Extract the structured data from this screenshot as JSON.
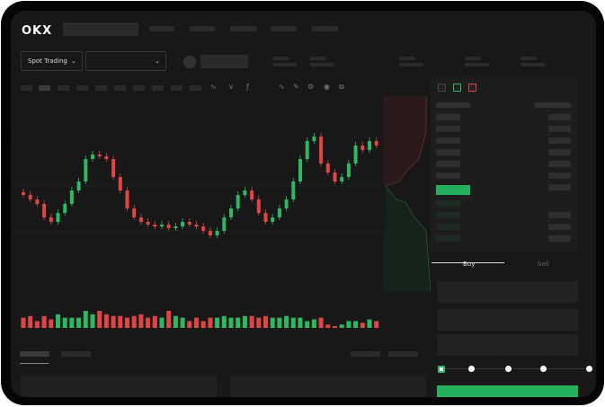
{
  "header": {
    "logo": "OKX"
  },
  "market": {
    "mode_label": "Spot Trading",
    "pair_value": ""
  },
  "orderbook": {
    "view_icons": [
      "orderbook-both-icon",
      "orderbook-buy-icon",
      "orderbook-sell-icon"
    ],
    "highlighted_color": "#24b05c"
  },
  "trade": {
    "buy_label": "Buy",
    "sell_label": "Sell",
    "leverage_steps": 5,
    "selected_step": 0,
    "submit_color": "#24b05c"
  },
  "colors": {
    "up": "#2fb864",
    "down": "#e04545",
    "background": "#181818"
  },
  "chart_data": {
    "type": "candlestick",
    "closes": [
      95,
      90,
      85,
      70,
      65,
      75,
      85,
      100,
      110,
      135,
      140,
      138,
      135,
      115,
      100,
      80,
      70,
      65,
      62,
      60,
      62,
      58,
      60,
      65,
      62,
      60,
      55,
      50,
      55,
      70,
      80,
      95,
      100,
      90,
      75,
      65,
      70,
      80,
      90,
      110,
      135,
      155,
      160,
      130,
      120,
      110,
      115,
      130,
      150,
      145,
      155,
      150
    ],
    "volumes": [
      6,
      7,
      4,
      7,
      5,
      8,
      6,
      6,
      6,
      10,
      8,
      10,
      8,
      7,
      7,
      6,
      7,
      8,
      6,
      7,
      6,
      10,
      7,
      6,
      4,
      6,
      4,
      6,
      6,
      7,
      6,
      6,
      7,
      7,
      6,
      7,
      6,
      6,
      7,
      6,
      6,
      4,
      5,
      6,
      2,
      1,
      2,
      4,
      4,
      3,
      5,
      4
    ]
  }
}
